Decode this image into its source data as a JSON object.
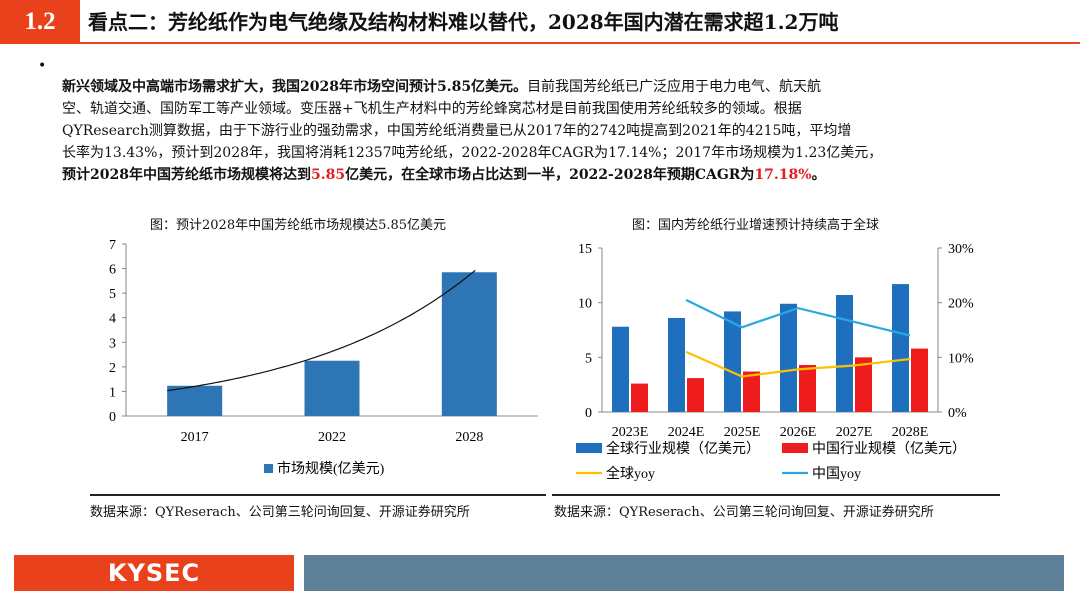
{
  "header": {
    "section_num": "1.2",
    "title": "看点二：芳纶纸作为电气绝缘及结构材料难以替代，2028年国内潜在需求超1.2万吨"
  },
  "paragraph": {
    "bullet": "•",
    "line1_bold": "新兴领域及中高端市场需求扩大，我国2028年市场空间预计5.85亿美元。",
    "line1_rest": "目前我国芳纶纸已广泛应用于电力电气、航天航",
    "line2": "空、轨道交通、国防军工等产业领域。变压器+飞机生产材料中的芳纶蜂窝芯材是目前我国使用芳纶纸较多的领域。根据",
    "line3": "QYResearch测算数据，由于下游行业的强劲需求，中国芳纶纸消费量已从2017年的2742吨提高到2021年的4215吨，平均增",
    "line4": "长率为13.43%，预计到2028年，我国将消耗12357吨芳纶纸，2022-2028年CAGR为17.14%；2017年市场规模为1.23亿美元，",
    "line5_a": "预计2028年中国芳纶纸市场规模将达到",
    "line5_red1": "5.85",
    "line5_b": "亿美元，在全球市场占比达到一半，2022-2028年预期CAGR为",
    "line5_red2": "17.18%",
    "line5_c": "。"
  },
  "chart_left": {
    "caption": "图：预计2028年中国芳纶纸市场规模达5.85亿美元",
    "source": "数据来源：QYReserach、公司第三轮问询回复、开源证券研究所"
  },
  "chart_right": {
    "caption": "图：国内芳纶纸行业增速预计持续高于全球",
    "source": "数据来源：QYReserach、公司第三轮问询回复、开源证券研究所"
  },
  "footer": {
    "logo": "KYSEC"
  },
  "chart_data": [
    {
      "type": "bar",
      "categories": [
        "2017",
        "2022",
        "2028"
      ],
      "series": [
        {
          "name": "市场规模(亿美元)",
          "values": [
            1.23,
            2.25,
            5.85
          ],
          "color": "#2e75b6"
        }
      ],
      "trendline": true,
      "ylim": [
        0,
        7
      ],
      "yticks": [
        0,
        1,
        2,
        3,
        4,
        5,
        6,
        7
      ],
      "grid": false,
      "legend": "bottom"
    },
    {
      "type": "bar",
      "categories": [
        "2023E",
        "2024E",
        "2025E",
        "2026E",
        "2027E",
        "2028E"
      ],
      "series": [
        {
          "name": "全球行业规模（亿美元）",
          "values": [
            7.8,
            8.6,
            9.2,
            9.9,
            10.7,
            11.7
          ],
          "color": "#1f6fbf",
          "axis": "left"
        },
        {
          "name": "中国行业规模（亿美元）",
          "values": [
            2.6,
            3.1,
            3.7,
            4.3,
            5.0,
            5.8
          ],
          "color": "#ee1c1c",
          "axis": "left"
        },
        {
          "name": "全球yoy",
          "values": [
            null,
            0.11,
            0.065,
            0.078,
            0.085,
            0.097
          ],
          "color": "#ffc000",
          "axis": "right",
          "line": true
        },
        {
          "name": "中国yoy",
          "values": [
            null,
            0.205,
            0.155,
            0.19,
            0.165,
            0.14
          ],
          "color": "#2aa9e0",
          "axis": "right",
          "line": true
        }
      ],
      "ylim": [
        0,
        15
      ],
      "yticks": [
        0,
        5,
        10,
        15
      ],
      "y2lim": [
        0,
        0.3
      ],
      "y2ticks": [
        "0%",
        "10%",
        "20%",
        "30%"
      ],
      "grid": false,
      "legend": "bottom"
    }
  ]
}
